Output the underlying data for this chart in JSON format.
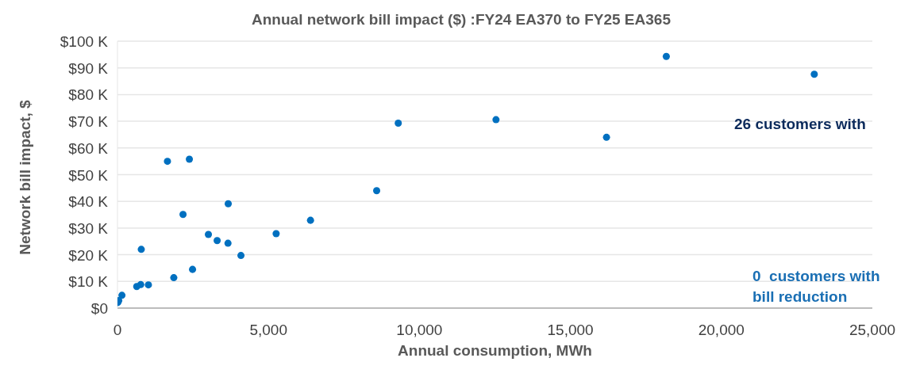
{
  "chart_data": {
    "type": "scatter",
    "title": "Annual network bill impact ($) :FY24 EA370 to FY25 EA365",
    "xlabel": "Annual consumption, MWh",
    "ylabel": "Network bill impact, $",
    "annotations": [
      "26 customers with",
      "0  customers with bill reduction"
    ],
    "x": [
      1655,
      2381,
      3668,
      2171,
      6393,
      5255,
      3011,
      3301,
      3660,
      4089,
      788,
      2486,
      1865,
      1024,
      770,
      638,
      148,
      42,
      10,
      8584,
      9299,
      12536,
      16196,
      23077,
      18176
    ],
    "series": [
      {
        "color": "#0070c0",
        "values": [
          55000,
          55800,
          39100,
          35100,
          32900,
          27900,
          27600,
          25300,
          24300,
          19700,
          22000,
          14500,
          11400,
          8700,
          8800,
          8100,
          4800,
          2800,
          2100,
          44000,
          69300,
          70600,
          64000,
          87600,
          94300
        ]
      }
    ],
    "xlim": [
      0,
      25000
    ],
    "xticks": [
      0,
      {
        "value": 5000,
        "label": "5,000"
      },
      {
        "value": 10000,
        "label": "10,000"
      },
      {
        "value": 15000,
        "label": "15,000"
      },
      {
        "value": 20000,
        "label": "20,000"
      },
      {
        "value": 25000,
        "label": "25,000"
      }
    ],
    "ylim": [
      0,
      100000
    ],
    "yticks": [
      {
        "value": 0,
        "label": "$0"
      },
      {
        "value": 10000,
        "label": "$10 K"
      },
      {
        "value": 20000,
        "label": "$20 K"
      },
      {
        "value": 30000,
        "label": "$30 K"
      },
      {
        "value": 40000,
        "label": "$40 K"
      },
      {
        "value": 50000,
        "label": "$50 K"
      },
      {
        "value": 60000,
        "label": "$60 K"
      },
      {
        "value": 70000,
        "label": "$70 K"
      },
      {
        "value": 80000,
        "label": "$80 K"
      },
      {
        "value": 90000,
        "label": "$90 K"
      },
      {
        "value": 100000,
        "label": "$100 K"
      }
    ],
    "grid": "y",
    "marker": "circle"
  }
}
